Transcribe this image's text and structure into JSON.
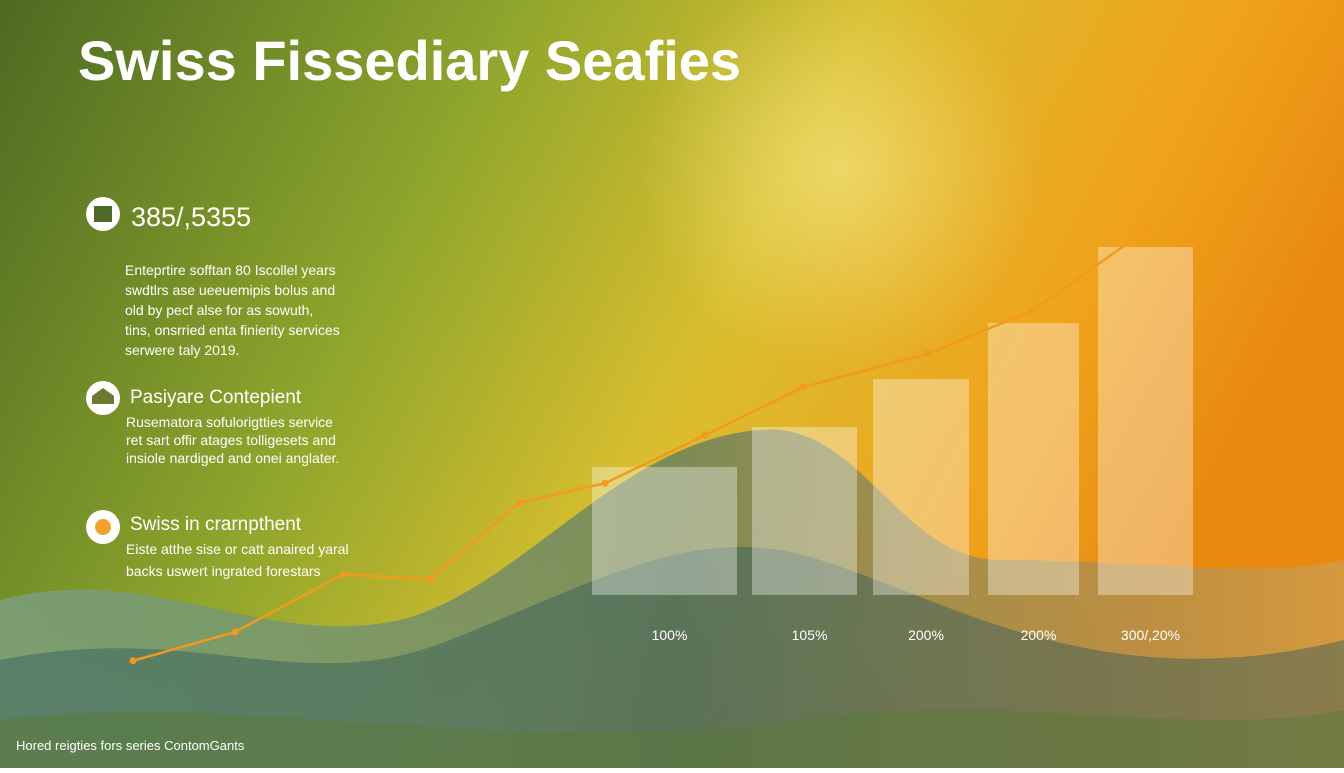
{
  "header": {
    "title": "Swiss  Fissediary  Seafies"
  },
  "stat": {
    "value": "385/,5355",
    "lines": [
      "Enteprtire sofftan 80 Iscollel years",
      "swdtlrs ase ueeuemipis bolus and",
      "old by pecf alse for as sowuth,",
      "tins, onsrried enta finierity services",
      "serwere taly 2019."
    ]
  },
  "sections": [
    {
      "title": "Pasiyare Contepient",
      "lines": [
        "Rusematora sofulorigtties service",
        "ret sart offir atages tolligesets and",
        "insiole nardiged and onei anglater."
      ]
    },
    {
      "title": "Swiss in crarnpthent",
      "lines": [
        "Eiste atthe sise or catt anaired yaral",
        "backs uswert ingrated forestars"
      ]
    }
  ],
  "footer": "Hored reigties fors series ContomGants",
  "chart_data": [
    {
      "type": "bar",
      "categories": [
        "100%",
        "105%",
        "200%",
        "200%",
        "300/,20%"
      ],
      "values": [
        32,
        42,
        54,
        68,
        87
      ],
      "color": "rgba(255,255,255,0.35)"
    },
    {
      "type": "line",
      "series": [
        {
          "color": "#f29a1c",
          "values": [
            4,
            10,
            22,
            21,
            37,
            41,
            51,
            61,
            68,
            77,
            94
          ]
        }
      ]
    }
  ]
}
